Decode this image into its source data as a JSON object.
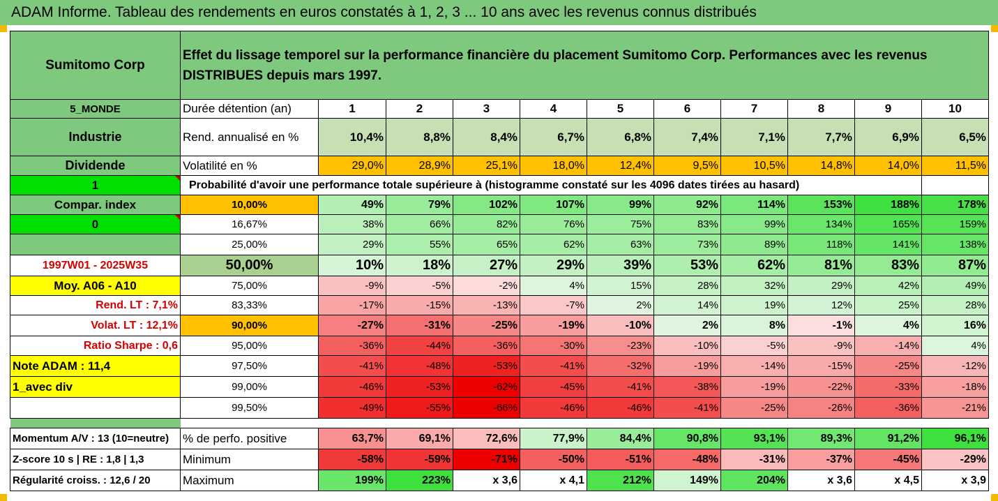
{
  "title": "ADAM Informe. Tableau des rendements en euros constatés à 1, 2, 3 ... 10 ans avec les revenus connus distribués",
  "company": "Sumitomo Corp",
  "headline": "Effet du lissage temporel sur la performance financière du placement Sumitomo Corp. Performances avec les revenus DISTRIBUES depuis mars 1997.",
  "side": {
    "zone": "5_MONDE",
    "sector": "Industrie",
    "dividend": "Dividende",
    "flag1": "1",
    "compar": "Compar. index",
    "flag0": "0",
    "period": "1997W01 - 2025W35",
    "moy": "Moy. A06 - A10",
    "rend": "Rend. LT :   7,1%",
    "volat": "Volat. LT :   12,1%",
    "sharpe": "Ratio Sharpe :   0,6",
    "note": "Note ADAM : 11,4",
    "div": "1_avec div",
    "momentum": "Momentum A/V : 13 (10=neutre)",
    "zscore": "Z-score 10 s  |  RE : 1,8  |  1,3",
    "regul": "Régularité croiss. : 12,6 / 20"
  },
  "labels": {
    "duree": "Durée détention (an)",
    "rend": "Rend. annualisé en %",
    "vol": "Volatilité en %",
    "proba": "Probabilité d'avoir une performance totale supérieure à (histogramme constaté sur les 4096 dates tirées au hasard)",
    "positive": "% de perfo. positive",
    "min": "Minimum",
    "max": "Maximum"
  },
  "years": [
    "1",
    "2",
    "3",
    "4",
    "5",
    "6",
    "7",
    "8",
    "9",
    "10"
  ],
  "rend": [
    "10,4%",
    "8,8%",
    "8,4%",
    "6,7%",
    "6,8%",
    "7,4%",
    "7,1%",
    "7,7%",
    "6,9%",
    "6,5%"
  ],
  "vol": [
    "29,0%",
    "28,9%",
    "25,1%",
    "18,0%",
    "12,4%",
    "9,5%",
    "10,5%",
    "14,8%",
    "14,0%",
    "11,5%"
  ],
  "quantiles": [
    {
      "q": "10,00%",
      "v": [
        "49%",
        "79%",
        "102%",
        "107%",
        "99%",
        "92%",
        "114%",
        "153%",
        "188%",
        "178%"
      ]
    },
    {
      "q": "16,67%",
      "v": [
        "38%",
        "66%",
        "82%",
        "76%",
        "75%",
        "83%",
        "99%",
        "134%",
        "165%",
        "159%"
      ]
    },
    {
      "q": "25,00%",
      "v": [
        "29%",
        "55%",
        "65%",
        "62%",
        "63%",
        "73%",
        "89%",
        "118%",
        "141%",
        "138%"
      ]
    },
    {
      "q": "50,00%",
      "v": [
        "10%",
        "18%",
        "27%",
        "29%",
        "39%",
        "53%",
        "62%",
        "81%",
        "83%",
        "87%"
      ]
    },
    {
      "q": "75,00%",
      "v": [
        "-9%",
        "-5%",
        "-2%",
        "4%",
        "15%",
        "28%",
        "32%",
        "29%",
        "42%",
        "49%"
      ]
    },
    {
      "q": "83,33%",
      "v": [
        "-17%",
        "-15%",
        "-13%",
        "-7%",
        "2%",
        "14%",
        "19%",
        "12%",
        "25%",
        "28%"
      ]
    },
    {
      "q": "90,00%",
      "v": [
        "-27%",
        "-31%",
        "-25%",
        "-19%",
        "-10%",
        "2%",
        "8%",
        "-1%",
        "4%",
        "16%"
      ]
    },
    {
      "q": "95,00%",
      "v": [
        "-36%",
        "-44%",
        "-36%",
        "-30%",
        "-23%",
        "-10%",
        "-5%",
        "-9%",
        "-14%",
        "4%"
      ]
    },
    {
      "q": "97,50%",
      "v": [
        "-41%",
        "-48%",
        "-53%",
        "-41%",
        "-32%",
        "-19%",
        "-14%",
        "-15%",
        "-25%",
        "-12%"
      ]
    },
    {
      "q": "99,00%",
      "v": [
        "-46%",
        "-53%",
        "-62%",
        "-45%",
        "-41%",
        "-38%",
        "-19%",
        "-22%",
        "-33%",
        "-18%"
      ]
    },
    {
      "q": "99,50%",
      "v": [
        "-49%",
        "-55%",
        "-66%",
        "-46%",
        "-46%",
        "-41%",
        "-25%",
        "-26%",
        "-36%",
        "-21%"
      ]
    }
  ],
  "positive": [
    "63,7%",
    "69,1%",
    "72,6%",
    "77,9%",
    "84,4%",
    "90,8%",
    "93,1%",
    "89,3%",
    "91,2%",
    "96,1%"
  ],
  "minimum": [
    "-58%",
    "-59%",
    "-71%",
    "-50%",
    "-51%",
    "-48%",
    "-31%",
    "-37%",
    "-45%",
    "-29%"
  ],
  "maximum": [
    "199%",
    "223%",
    "x 3,6",
    "x 4,1",
    "212%",
    "149%",
    "204%",
    "x 3,6",
    "x 4,5",
    "x 3,9"
  ],
  "colors": {
    "green": "#7ec97e",
    "bright_green": "#00e000",
    "orange": "#ffc000",
    "yellow": "#ffff00",
    "red_text": "#d40000",
    "positive_fill": "#63be7b",
    "negative_fill": "#f8696b"
  }
}
